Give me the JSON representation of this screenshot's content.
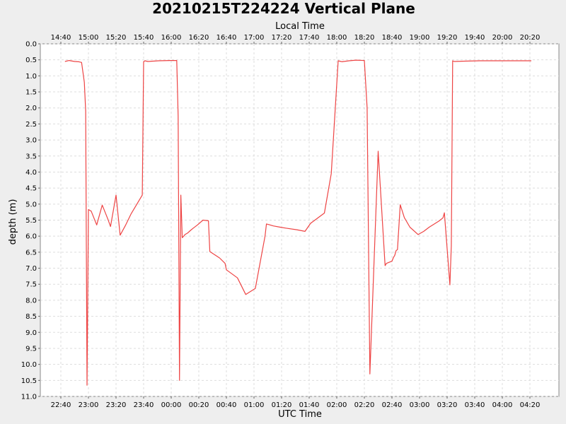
{
  "chart_data": {
    "type": "line",
    "title": "20210215T224224 Vertical Plane",
    "xlabel": "UTC Time",
    "x2label": "Local Time",
    "ylabel": "depth (m)",
    "ylim": [
      0.0,
      11.0
    ],
    "y_inverted": true,
    "grid": true,
    "line_color": "#ee4444",
    "plot_background": "#ffffff",
    "background": "#eeeeee",
    "x_ticks": [
      "22:40",
      "23:00",
      "23:20",
      "23:40",
      "00:00",
      "00:20",
      "00:40",
      "01:00",
      "01:20",
      "01:40",
      "02:00",
      "02:20",
      "02:40",
      "03:00",
      "03:20",
      "03:40",
      "04:00",
      "04:20"
    ],
    "x2_ticks": [
      "14:40",
      "15:00",
      "15:20",
      "15:40",
      "16:00",
      "16:20",
      "16:40",
      "17:00",
      "17:20",
      "17:40",
      "18:00",
      "18:20",
      "18:40",
      "19:00",
      "19:20",
      "19:40",
      "20:00",
      "20:20"
    ],
    "y_ticks": [
      "0.0",
      "0.5",
      "1.0",
      "1.5",
      "2.0",
      "2.5",
      "3.0",
      "3.5",
      "4.0",
      "4.5",
      "5.0",
      "5.5",
      "6.0",
      "6.5",
      "7.0",
      "7.5",
      "8.0",
      "8.5",
      "9.0",
      "9.5",
      "10.0",
      "10.5",
      "11.0"
    ],
    "series": [
      {
        "x": [
          "22:43",
          "22:46",
          "22:50",
          "22:53",
          "22:55",
          "22:57",
          "22:58",
          "22:59",
          "23:00",
          "23:02",
          "23:06",
          "23:10",
          "23:14",
          "23:16",
          "23:20",
          "23:23",
          "23:27",
          "23:31",
          "23:39",
          "23:40",
          "23:41",
          "23:43",
          "23:51",
          "23:59",
          "00:04",
          "00:05",
          "00:06",
          "00:07",
          "00:08",
          "00:09",
          "00:10",
          "00:12",
          "00:14",
          "00:16",
          "00:19",
          "00:23",
          "00:27",
          "00:28",
          "00:35",
          "00:39",
          "00:40",
          "00:48",
          "00:54",
          "01:01",
          "01:08",
          "01:09",
          "01:11",
          "01:14",
          "01:19",
          "01:23",
          "01:31",
          "01:37",
          "01:41",
          "01:51",
          "01:56",
          "02:01",
          "02:02",
          "02:03",
          "02:04",
          "02:05",
          "02:09",
          "02:14",
          "02:20",
          "02:22",
          "02:24",
          "02:30",
          "02:35",
          "02:36",
          "02:40",
          "02:41",
          "02:42",
          "02:43",
          "02:44",
          "02:46",
          "02:49",
          "02:53",
          "02:59",
          "03:03",
          "03:07",
          "03:14",
          "03:17",
          "03:18",
          "03:22",
          "03:23",
          "03:24",
          "03:25",
          "03:33",
          "03:44",
          "03:47",
          "03:50",
          "03:53",
          "03:56",
          "03:58",
          "04:00",
          "04:02",
          "04:07",
          "04:15",
          "04:21"
        ],
        "y": [
          0.55,
          0.52,
          0.55,
          0.56,
          0.58,
          1.2,
          2.1,
          10.65,
          5.17,
          5.22,
          5.65,
          5.03,
          5.46,
          5.7,
          4.72,
          5.97,
          5.65,
          5.3,
          4.72,
          0.56,
          0.53,
          0.55,
          0.53,
          0.52,
          0.52,
          2.25,
          10.5,
          4.72,
          6.05,
          6.0,
          5.95,
          5.9,
          5.82,
          5.75,
          5.65,
          5.5,
          5.52,
          6.48,
          6.68,
          6.85,
          7.05,
          7.3,
          7.82,
          7.63,
          6.0,
          5.62,
          5.64,
          5.68,
          5.72,
          5.75,
          5.8,
          5.85,
          5.6,
          5.28,
          4.05,
          0.53,
          0.54,
          0.55,
          0.56,
          0.55,
          0.53,
          0.51,
          0.52,
          2.0,
          10.3,
          3.35,
          6.92,
          6.85,
          6.78,
          6.67,
          6.6,
          6.45,
          6.42,
          5.02,
          5.42,
          5.72,
          5.95,
          5.85,
          5.72,
          5.53,
          5.43,
          5.27,
          7.52,
          6.3,
          0.53,
          0.55,
          0.54,
          0.53,
          0.53,
          0.53,
          0.53,
          0.53,
          0.53,
          0.53,
          0.53,
          0.53,
          0.53,
          0.53
        ]
      }
    ]
  }
}
